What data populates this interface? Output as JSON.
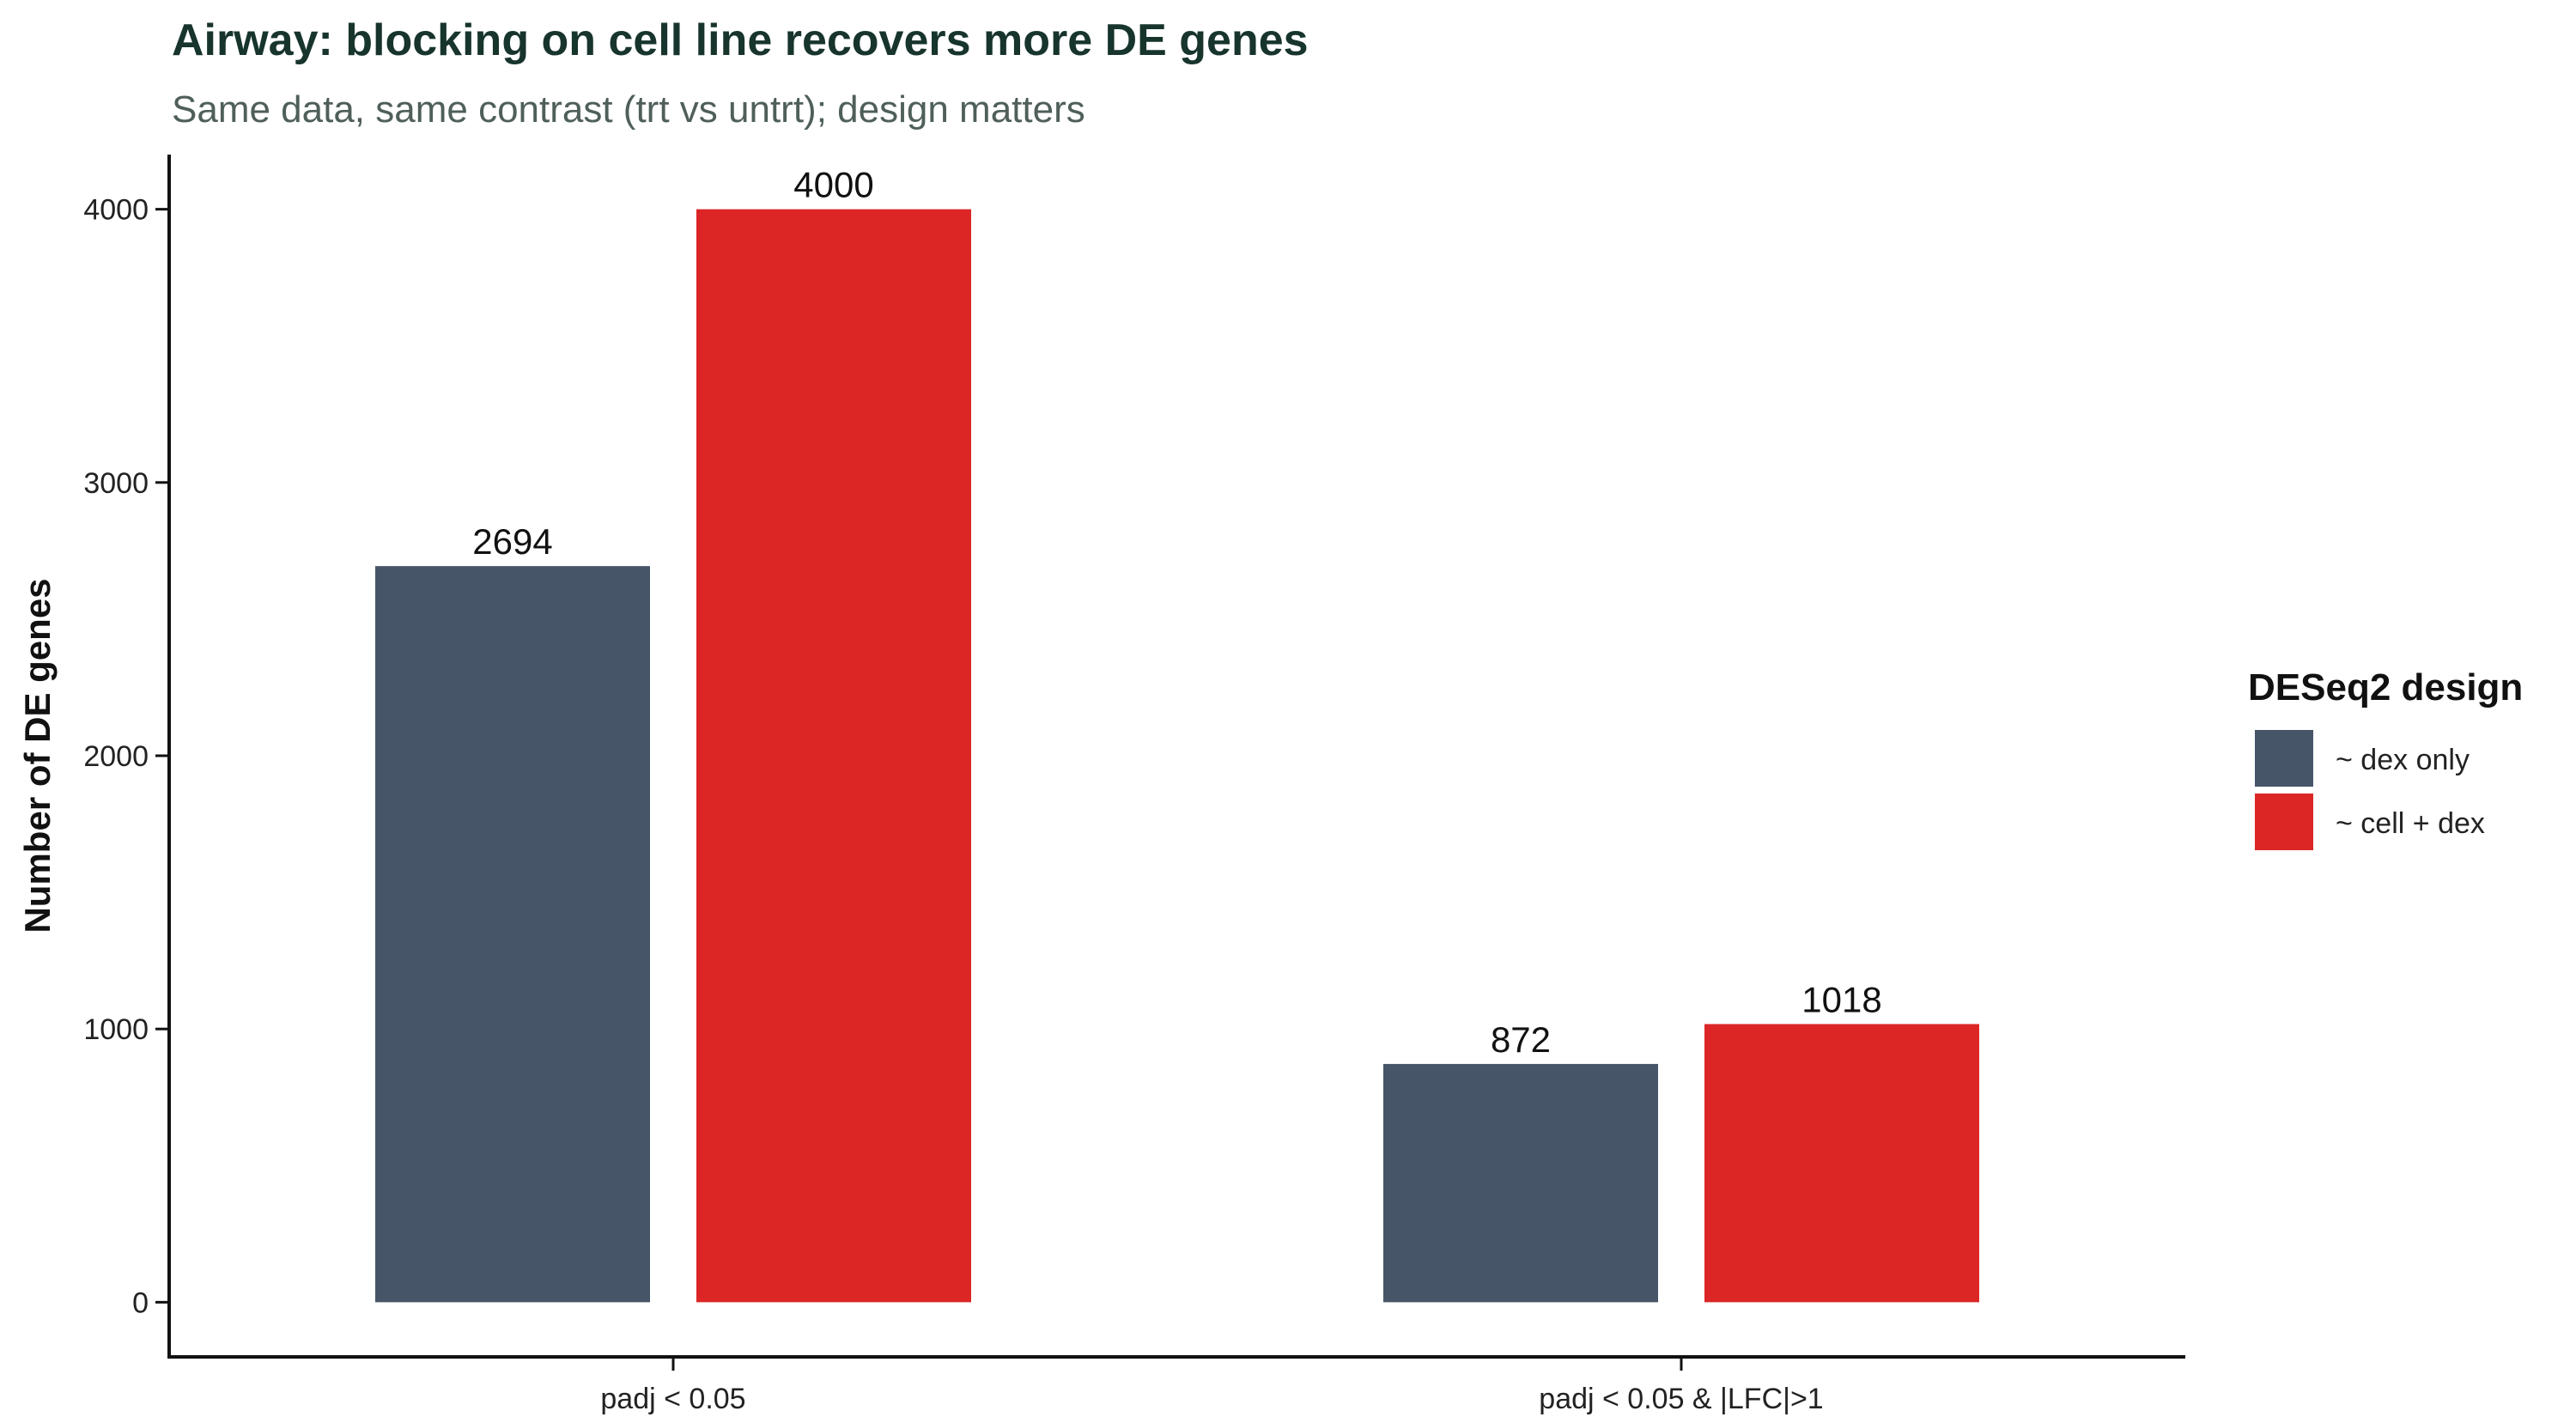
{
  "chart_data": {
    "type": "bar",
    "title": "Airway: blocking on cell line recovers more DE genes",
    "subtitle": "Same data, same contrast (trt vs untrt); design matters",
    "xlabel": "",
    "ylabel": "Number of DE genes",
    "categories": [
      "padj < 0.05",
      "padj < 0.05 & |LFC|>1"
    ],
    "series": [
      {
        "name": "~ dex only",
        "color": "#475569",
        "values": [
          2694,
          872
        ]
      },
      {
        "name": "~ cell + dex",
        "color": "#dc2626",
        "values": [
          4000,
          1018
        ]
      }
    ],
    "y_ticks": [
      0,
      1000,
      2000,
      3000,
      4000
    ],
    "ylim": [
      -200,
      4200
    ],
    "grid": false,
    "legend": {
      "title": "DESeq2 design",
      "position": "right"
    }
  }
}
